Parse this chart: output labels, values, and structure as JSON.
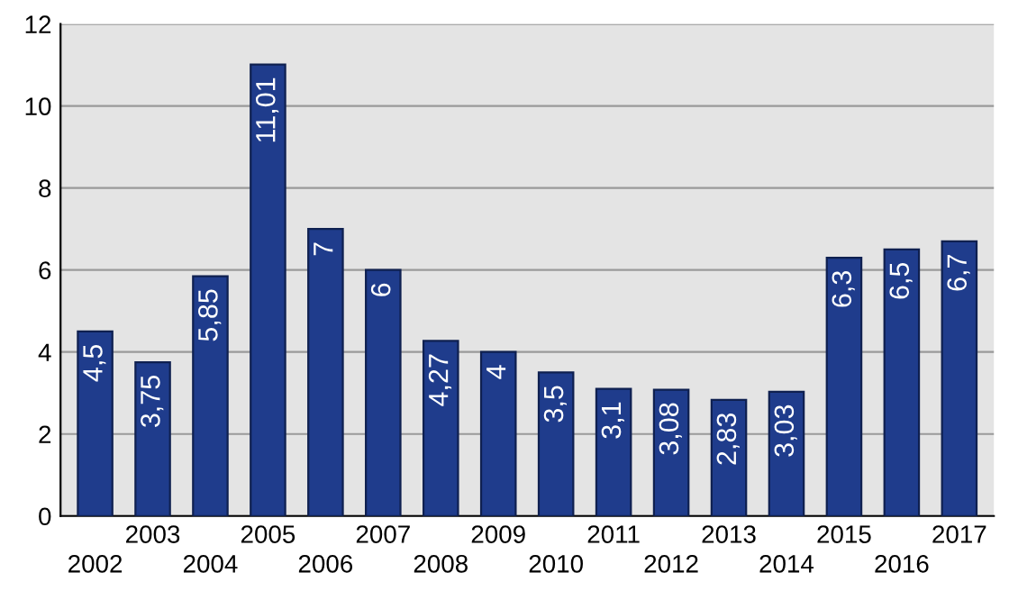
{
  "chart_data": {
    "type": "bar",
    "categories": [
      "2002",
      "2003",
      "2004",
      "2005",
      "2006",
      "2007",
      "2008",
      "2009",
      "2010",
      "2011",
      "2012",
      "2013",
      "2014",
      "2015",
      "2016",
      "2017"
    ],
    "values": [
      4.5,
      3.75,
      5.85,
      11.01,
      7,
      6,
      4.27,
      4,
      3.5,
      3.1,
      3.08,
      2.83,
      3.03,
      6.3,
      6.5,
      6.7
    ],
    "value_labels": [
      "4,5",
      "3,75",
      "5,85",
      "11,01",
      "7",
      "6",
      "4,27",
      "4",
      "3,5",
      "3,1",
      "3,08",
      "2,83",
      "3,03",
      "6,3",
      "6,5",
      "6,7"
    ],
    "color": "#1f3c8c",
    "ylim": [
      0,
      12
    ],
    "yticks": [
      0,
      2,
      4,
      6,
      8,
      10,
      12
    ],
    "grid": "y"
  }
}
